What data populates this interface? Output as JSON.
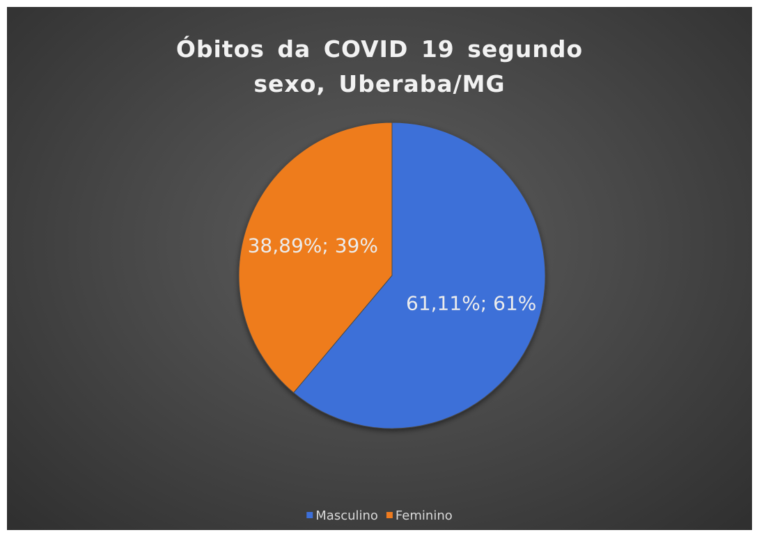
{
  "chart_data": {
    "type": "pie",
    "title": "Óbitos da COVID 19 segundo sexo, Uberaba/MG",
    "categories": [
      "Masculino",
      "Feminino"
    ],
    "values": [
      61.11,
      38.89
    ],
    "value_labels": [
      "61,11%; 61%",
      "38,89%; 39%"
    ],
    "colors": [
      "#3d6fd8",
      "#ee7b1f"
    ],
    "legend": "bottom"
  }
}
